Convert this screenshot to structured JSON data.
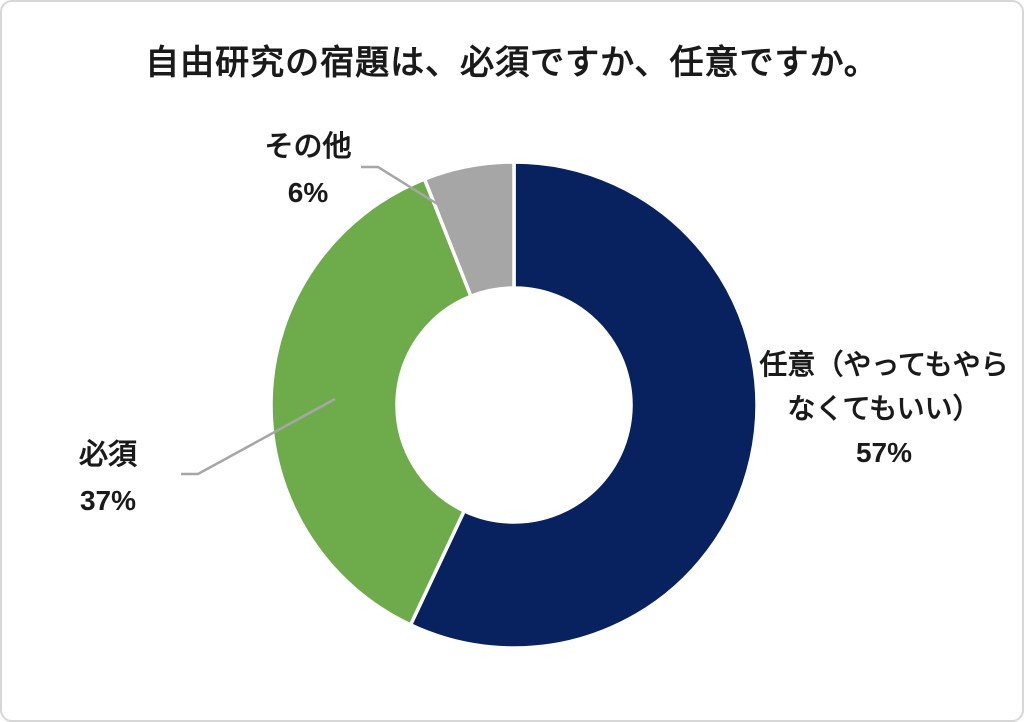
{
  "chart_data": {
    "type": "pie",
    "subtype": "donut",
    "title": "自由研究の宿題は、必須ですか、任意ですか。",
    "direction": "clockwise",
    "start_angle_deg": 0,
    "hole_ratio": 0.48,
    "legend": "none",
    "data_labels": "outside with leader lines",
    "total": 100,
    "slices": [
      {
        "label": "任意（やってもやらなくてもいい）",
        "label_lines": [
          "任意（やってもやら",
          "なくてもいい）"
        ],
        "value": 57,
        "pct_label": "57%",
        "color": "#08225f"
      },
      {
        "label": "必須",
        "label_lines": [
          "必須"
        ],
        "value": 37,
        "pct_label": "37%",
        "color": "#6eac4b"
      },
      {
        "label": "その他",
        "label_lines": [
          "その他"
        ],
        "value": 6,
        "pct_label": "6%",
        "color": "#a6a6a6"
      }
    ]
  },
  "colors": {
    "background": "#ffffff",
    "frame_border": "#d7d7d7",
    "text": "#1a1a1a",
    "separator": "#ffffff",
    "leader_line": "#a6a6a6"
  }
}
